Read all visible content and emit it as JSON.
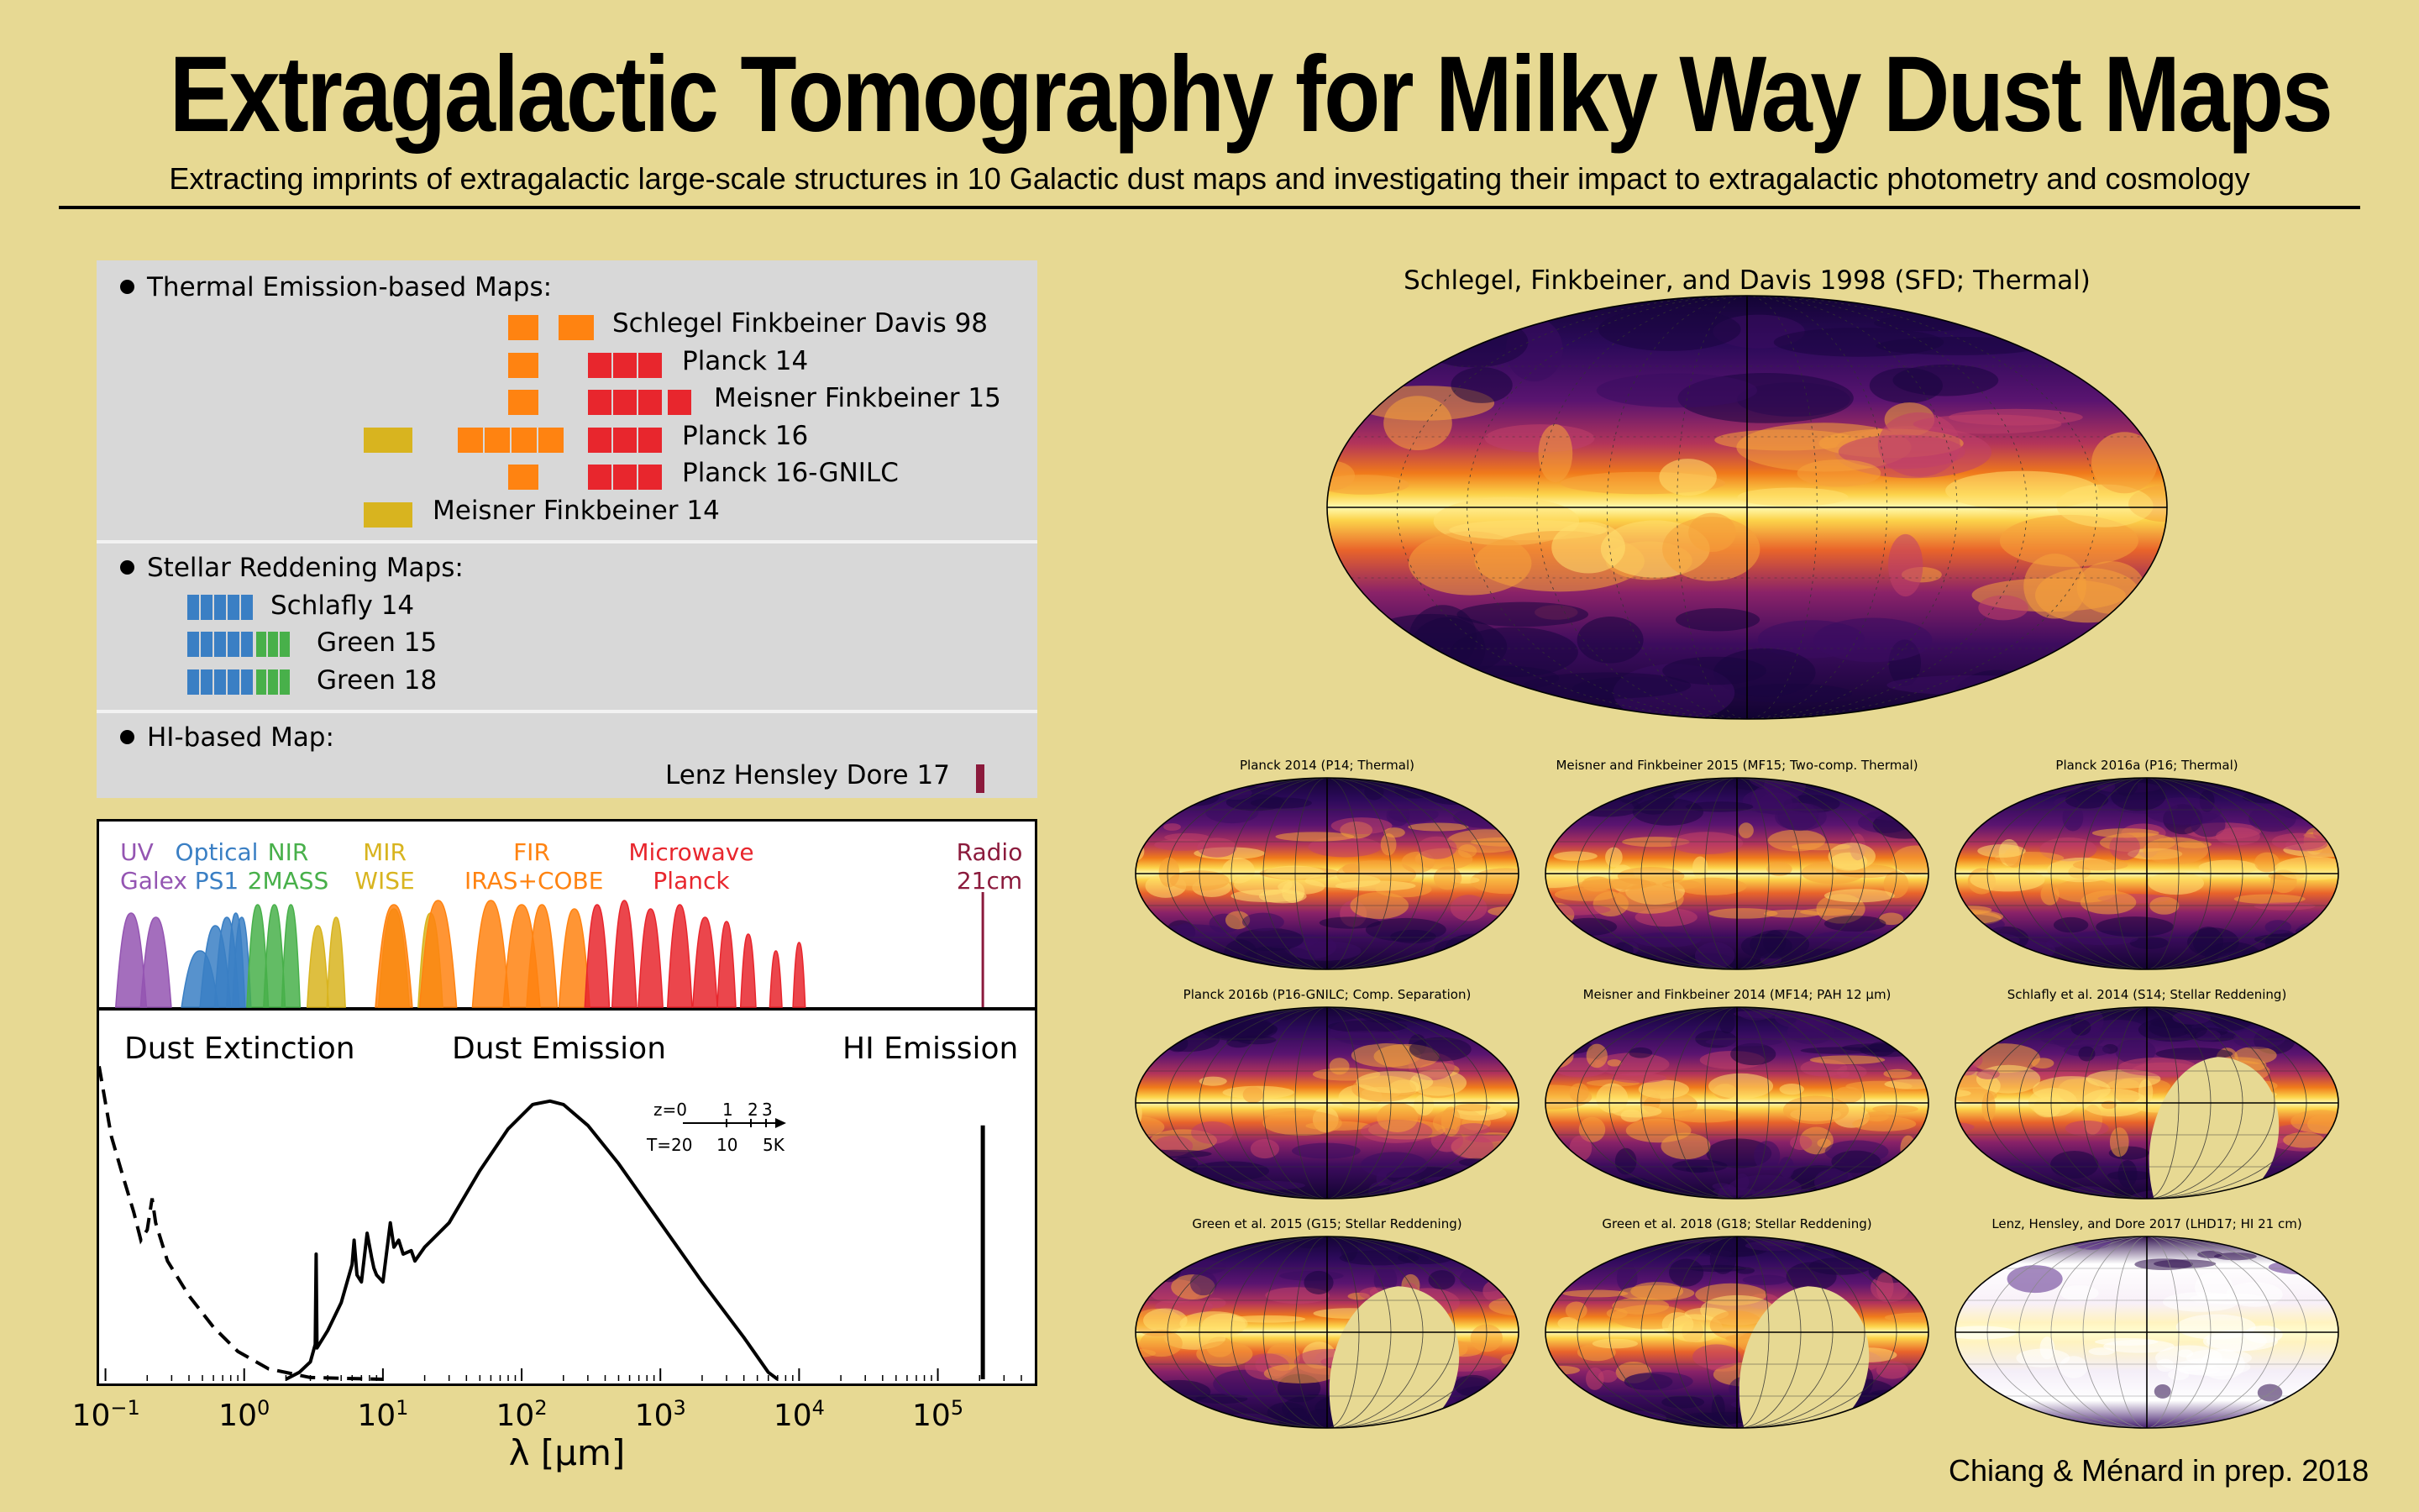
{
  "title": "Extragalactic Tomography for Milky Way Dust Maps",
  "subtitle": "Extracting imprints of extragalactic large-scale structures in 10 Galactic dust maps and investigating their impact to extragalactic photometry and cosmology",
  "sections": [
    {
      "title": "Thermal Emission-based Maps:",
      "maps": [
        {
          "name": "Schlegel Finkbeiner Davis 98",
          "bands": [
            "FIR",
            "FIR"
          ]
        },
        {
          "name": "Planck 14",
          "bands": [
            "FIR",
            "Microwave",
            "Microwave",
            "Microwave"
          ]
        },
        {
          "name": "Meisner Finkbeiner 15",
          "bands": [
            "FIR",
            "Microwave",
            "Microwave",
            "Microwave",
            "Microwave"
          ]
        },
        {
          "name": "Planck 16",
          "bands": [
            "MIR",
            "FIR",
            "FIR",
            "FIR",
            "FIR",
            "Microwave",
            "Microwave",
            "Microwave"
          ]
        },
        {
          "name": "Planck 16-GNILC",
          "bands": [
            "FIR",
            "Microwave",
            "Microwave",
            "Microwave"
          ]
        },
        {
          "name": "Meisner Finkbeiner 14",
          "bands": [
            "MIR"
          ]
        }
      ]
    },
    {
      "title": "Stellar Reddening Maps:",
      "maps": [
        {
          "name": "Schlafly 14",
          "bands": [
            "Optical",
            "Optical",
            "Optical",
            "Optical",
            "Optical"
          ]
        },
        {
          "name": "Green 15",
          "bands": [
            "Optical",
            "Optical",
            "Optical",
            "Optical",
            "Optical",
            "NIR",
            "NIR",
            "NIR"
          ]
        },
        {
          "name": "Green 18",
          "bands": [
            "Optical",
            "Optical",
            "Optical",
            "Optical",
            "Optical",
            "NIR",
            "NIR",
            "NIR"
          ]
        }
      ]
    },
    {
      "title": "HI-based Map:",
      "maps": [
        {
          "name": "Lenz Hensley Dore 17",
          "bands": [
            "Radio"
          ]
        }
      ]
    }
  ],
  "band_colors": {
    "UV": "#9455b2",
    "Optical": "#3a7fc4",
    "NIR": "#48b04a",
    "MIR": "#d8b41f",
    "FIR": "#ff8311",
    "Microwave": "#e8262d",
    "Radio": "#8b1a3c"
  },
  "bands": [
    {
      "top": "UV",
      "bottom": "Galex",
      "color": "#9455b2"
    },
    {
      "top": "Optical",
      "bottom": "PS1",
      "color": "#3a7fc4"
    },
    {
      "top": "NIR",
      "bottom": "2MASS",
      "color": "#48b04a"
    },
    {
      "top": "MIR",
      "bottom": "WISE",
      "color": "#d8b41f"
    },
    {
      "top": "FIR",
      "bottom": "IRAS+COBE",
      "color": "#ff8311"
    },
    {
      "top": "Microwave",
      "bottom": "Planck",
      "color": "#e8262d"
    },
    {
      "top": "Radio",
      "bottom": "21cm",
      "color": "#8b1a3c"
    }
  ],
  "emission_labels": {
    "extinction": "Dust Extinction",
    "emission": "Dust Emission",
    "hi": "HI Emission"
  },
  "redshift_inset": {
    "z_label": "z=0",
    "z_ticks": [
      "1",
      "2",
      "3"
    ],
    "t_label": "T=20",
    "t_ticks": [
      "10",
      "5K"
    ]
  },
  "chart_data": {
    "type": "line",
    "xscale": "log",
    "xlim": [
      0.09,
      500000
    ],
    "xlabel": "λ [μm]",
    "xticks": [
      {
        "base": "10",
        "exp": "−1",
        "value": 0.1
      },
      {
        "base": "10",
        "exp": "0",
        "value": 1
      },
      {
        "base": "10",
        "exp": "1",
        "value": 10
      },
      {
        "base": "10",
        "exp": "2",
        "value": 100
      },
      {
        "base": "10",
        "exp": "3",
        "value": 1000
      },
      {
        "base": "10",
        "exp": "4",
        "value": 10000
      },
      {
        "base": "10",
        "exp": "5",
        "value": 100000
      }
    ]
  },
  "big_map": {
    "title": "Schlegel, Finkbeiner, and Davis 1998 (SFD; Thermal)"
  },
  "small_maps": [
    {
      "title": "Planck 2014 (P14; Thermal)",
      "style": "thermal"
    },
    {
      "title": "Meisner and Finkbeiner 2015 (MF15; Two-comp. Thermal)",
      "style": "thermal"
    },
    {
      "title": "Planck 2016a (P16; Thermal)",
      "style": "thermal"
    },
    {
      "title": "Planck 2016b (P16-GNILC; Comp. Separation)",
      "style": "thermal"
    },
    {
      "title": "Meisner and Finkbeiner 2014 (MF14; PAH 12 μm)",
      "style": "pah"
    },
    {
      "title": "Schlafly et al. 2014 (S14; Stellar Reddening)",
      "style": "reddening"
    },
    {
      "title": "Green et al. 2015 (G15; Stellar Reddening)",
      "style": "reddening"
    },
    {
      "title": "Green et al. 2018 (G18; Stellar Reddening)",
      "style": "reddening"
    },
    {
      "title": "Lenz, Hensley, and Dore 2017 (LHD17; HI 21 cm)",
      "style": "hi"
    }
  ],
  "credit": "Chiang & Ménard in prep. 2018"
}
